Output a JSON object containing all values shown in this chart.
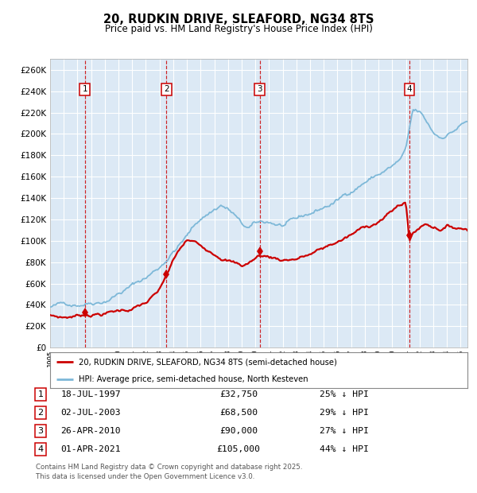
{
  "title": "20, RUDKIN DRIVE, SLEAFORD, NG34 8TS",
  "subtitle": "Price paid vs. HM Land Registry's House Price Index (HPI)",
  "bg_color": "#dce9f5",
  "grid_color": "#ffffff",
  "hpi_color": "#7db8d8",
  "price_color": "#cc0000",
  "transactions": [
    {
      "num": 1,
      "date_str": "18-JUL-1997",
      "date_x": 1997.54,
      "price": 32750,
      "pct": "25%"
    },
    {
      "num": 2,
      "date_str": "02-JUL-2003",
      "date_x": 2003.5,
      "price": 68500,
      "pct": "29%"
    },
    {
      "num": 3,
      "date_str": "26-APR-2010",
      "date_x": 2010.32,
      "price": 90000,
      "pct": "27%"
    },
    {
      "num": 4,
      "date_str": "01-APR-2021",
      "date_x": 2021.25,
      "price": 105000,
      "pct": "44%"
    }
  ],
  "legend_label_price": "20, RUDKIN DRIVE, SLEAFORD, NG34 8TS (semi-detached house)",
  "legend_label_hpi": "HPI: Average price, semi-detached house, North Kesteven",
  "footnote1": "Contains HM Land Registry data © Crown copyright and database right 2025.",
  "footnote2": "This data is licensed under the Open Government Licence v3.0.",
  "ylim": [
    0,
    270000
  ],
  "ytick_step": 20000,
  "xmin": 1995.0,
  "xmax": 2025.5
}
